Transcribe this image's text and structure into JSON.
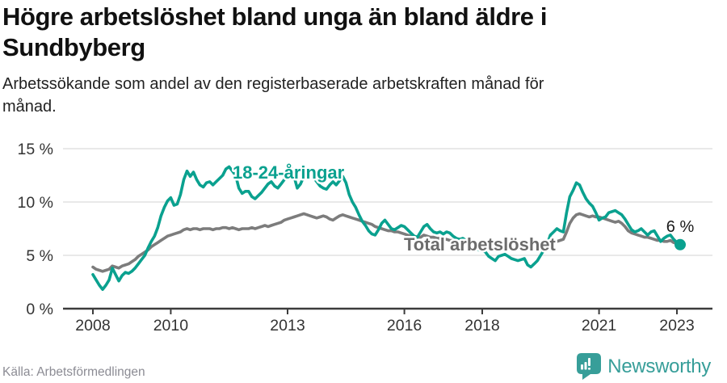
{
  "header": {
    "title_lines": [
      "Högre arbetslöshet bland unga än bland äldre i",
      "Sundbyberg"
    ],
    "subtitle_lines": [
      "Arbetssökande som andel av den registerbaserade arbetskraften månad för",
      "månad."
    ]
  },
  "chart_data": {
    "type": "line",
    "x_unit": "month",
    "x_start": "2008-01",
    "x_end": "2023-02",
    "grid": true,
    "y_axis": {
      "tick_values": [
        0,
        5,
        10,
        15
      ],
      "tick_labels": [
        "0 %",
        "5 %",
        "10 %",
        "15 %"
      ],
      "min": 0,
      "max": 15
    },
    "x_axis": {
      "tick_years": [
        "2008",
        "2010",
        "2013",
        "2016",
        "2018",
        "2021",
        "2023"
      ]
    },
    "series": [
      {
        "name": "18-24-åringar",
        "slug": "youth",
        "color": "#0aa18f",
        "label_color": "#0aa18f",
        "values": [
          3.2,
          2.7,
          2.2,
          1.8,
          2.2,
          2.7,
          3.8,
          3.2,
          2.6,
          3.1,
          3.4,
          3.3,
          3.5,
          3.8,
          4.2,
          4.6,
          5.0,
          5.7,
          6.3,
          6.8,
          7.6,
          8.7,
          9.5,
          10.1,
          10.4,
          9.7,
          9.8,
          10.7,
          12.1,
          12.9,
          12.4,
          12.8,
          12.1,
          11.6,
          11.4,
          11.8,
          11.9,
          11.6,
          11.9,
          12.2,
          12.5,
          13.1,
          13.3,
          12.9,
          12.5,
          11.3,
          10.8,
          11.0,
          11.0,
          10.5,
          10.3,
          10.6,
          10.9,
          11.3,
          11.7,
          11.9,
          11.5,
          11.3,
          11.7,
          12.1,
          12.7,
          13.3,
          12.4,
          11.3,
          11.7,
          12.4,
          12.9,
          12.6,
          12.3,
          11.9,
          11.5,
          11.3,
          11.2,
          11.6,
          11.9,
          11.6,
          12.0,
          12.4,
          11.8,
          10.7,
          10.0,
          9.5,
          8.8,
          8.2,
          7.8,
          7.3,
          7.0,
          6.9,
          7.4,
          8.0,
          8.3,
          7.9,
          7.5,
          7.4,
          7.6,
          7.8,
          7.7,
          7.4,
          7.1,
          6.8,
          6.7,
          7.2,
          7.7,
          7.9,
          7.5,
          7.2,
          7.1,
          7.2,
          7.0,
          7.2,
          7.1,
          6.8,
          6.6,
          6.5,
          6.6,
          6.4,
          6.1,
          5.9,
          5.7,
          5.5,
          5.5,
          5.3,
          4.9,
          4.7,
          4.5,
          4.9,
          5.0,
          5.1,
          4.9,
          4.7,
          4.6,
          4.5,
          4.6,
          4.7,
          4.1,
          3.9,
          4.2,
          4.5,
          5.0,
          5.5,
          6.0,
          6.9,
          7.2,
          7.5,
          7.3,
          7.2,
          9.0,
          10.5,
          11.1,
          11.8,
          11.6,
          10.9,
          10.3,
          9.9,
          9.6,
          9.0,
          8.3,
          8.5,
          8.6,
          9.0,
          9.1,
          9.2,
          9.0,
          8.8,
          8.4,
          7.9,
          7.4,
          7.2,
          7.3,
          7.5,
          7.2,
          6.9,
          7.2,
          7.3,
          6.8,
          6.3,
          6.6,
          6.8,
          6.9,
          6.5,
          6.2,
          6.0
        ]
      },
      {
        "name": "Total arbetslöshet",
        "slug": "total",
        "color": "#7c7c7c",
        "label_color": "#6c6c6c",
        "values": [
          3.9,
          3.7,
          3.6,
          3.5,
          3.6,
          3.7,
          4.0,
          3.9,
          3.8,
          4.0,
          4.1,
          4.2,
          4.4,
          4.6,
          4.9,
          5.1,
          5.3,
          5.5,
          5.8,
          6.0,
          6.2,
          6.4,
          6.6,
          6.8,
          6.9,
          7.0,
          7.1,
          7.2,
          7.4,
          7.5,
          7.4,
          7.5,
          7.5,
          7.4,
          7.5,
          7.5,
          7.5,
          7.4,
          7.5,
          7.5,
          7.6,
          7.6,
          7.5,
          7.6,
          7.5,
          7.4,
          7.5,
          7.5,
          7.5,
          7.6,
          7.5,
          7.6,
          7.7,
          7.8,
          7.7,
          7.8,
          7.9,
          8.0,
          8.1,
          8.3,
          8.4,
          8.5,
          8.6,
          8.7,
          8.8,
          8.9,
          8.8,
          8.7,
          8.6,
          8.5,
          8.6,
          8.7,
          8.6,
          8.4,
          8.3,
          8.5,
          8.7,
          8.8,
          8.7,
          8.6,
          8.5,
          8.4,
          8.3,
          8.2,
          8.1,
          8.0,
          7.9,
          7.7,
          7.6,
          7.5,
          7.4,
          7.3,
          7.3,
          7.2,
          7.2,
          7.1,
          7.0,
          6.9,
          6.8,
          6.8,
          6.7,
          6.7,
          6.9,
          6.8,
          6.7,
          6.7,
          6.6,
          6.6,
          6.5,
          6.5,
          6.4,
          6.4,
          6.3,
          6.3,
          6.3,
          6.2,
          6.2,
          6.1,
          6.1,
          6.0,
          6.0,
          5.9,
          5.9,
          5.8,
          5.8,
          5.8,
          5.9,
          5.8,
          5.8,
          5.7,
          5.7,
          5.8,
          5.8,
          5.8,
          5.9,
          5.9,
          6.0,
          6.0,
          6.1,
          6.1,
          6.2,
          6.2,
          6.3,
          6.3,
          6.4,
          6.5,
          7.2,
          8.0,
          8.5,
          8.8,
          8.9,
          8.8,
          8.7,
          8.6,
          8.7,
          8.6,
          8.6,
          8.5,
          8.4,
          8.3,
          8.2,
          8.1,
          8.2,
          8.0,
          7.7,
          7.3,
          7.1,
          7.0,
          6.9,
          6.8,
          6.7,
          6.7,
          6.6,
          6.5,
          6.4,
          6.4,
          6.3,
          6.3,
          6.4,
          6.2,
          6.1,
          5.9
        ]
      }
    ],
    "annotations": {
      "end_label": "6 %",
      "end_value_percent": 6
    },
    "colors": {
      "grid": "#dcdcdc",
      "axis": "#3c3c3c",
      "tick_text": "#333333"
    }
  },
  "footer": {
    "source": "Källa: Arbetsförmedlingen",
    "brand": "Newsworthy",
    "brand_color": "#379e99",
    "logo_icon": "bar-chart-pin-icon"
  }
}
